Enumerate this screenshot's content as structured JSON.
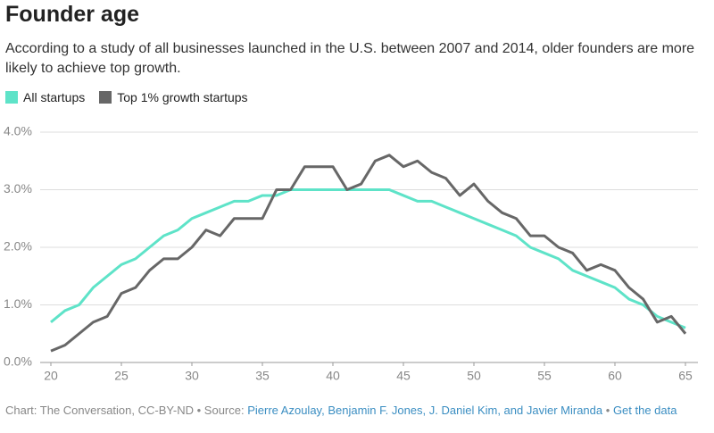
{
  "chart_data": {
    "type": "line",
    "title": "Founder age",
    "subtitle": "According to a study of all businesses launched in the U.S. between 2007 and 2014, older founders are more likely to achieve top growth.",
    "x": [
      20,
      21,
      22,
      23,
      24,
      25,
      26,
      27,
      28,
      29,
      30,
      31,
      32,
      33,
      34,
      35,
      36,
      37,
      38,
      39,
      40,
      41,
      42,
      43,
      44,
      45,
      46,
      47,
      48,
      49,
      50,
      51,
      52,
      53,
      54,
      55,
      56,
      57,
      58,
      59,
      60,
      61,
      62,
      63,
      64,
      65
    ],
    "series": [
      {
        "name": "All startups",
        "color": "#5ee3c8",
        "values": [
          0.7,
          0.9,
          1.0,
          1.3,
          1.5,
          1.7,
          1.8,
          2.0,
          2.2,
          2.3,
          2.5,
          2.6,
          2.7,
          2.8,
          2.8,
          2.9,
          2.9,
          3.0,
          3.0,
          3.0,
          3.0,
          3.0,
          3.0,
          3.0,
          3.0,
          2.9,
          2.8,
          2.8,
          2.7,
          2.6,
          2.5,
          2.4,
          2.3,
          2.2,
          2.0,
          1.9,
          1.8,
          1.6,
          1.5,
          1.4,
          1.3,
          1.1,
          1.0,
          0.8,
          0.7,
          0.6
        ]
      },
      {
        "name": "Top 1% growth startups",
        "color": "#676767",
        "values": [
          0.2,
          0.3,
          0.5,
          0.7,
          0.8,
          1.2,
          1.3,
          1.6,
          1.8,
          1.8,
          2.0,
          2.3,
          2.2,
          2.5,
          2.5,
          2.5,
          3.0,
          3.0,
          3.4,
          3.4,
          3.4,
          3.0,
          3.1,
          3.5,
          3.6,
          3.4,
          3.5,
          3.3,
          3.2,
          2.9,
          3.1,
          2.8,
          2.6,
          2.5,
          2.2,
          2.2,
          2.0,
          1.9,
          1.6,
          1.7,
          1.6,
          1.3,
          1.1,
          0.7,
          0.8,
          0.5
        ]
      }
    ],
    "xlim": [
      20,
      65
    ],
    "xticks": [
      20,
      25,
      30,
      35,
      40,
      45,
      50,
      55,
      60,
      65
    ],
    "ylim": [
      0,
      4
    ],
    "yticks": [
      {
        "value": 0,
        "label": "0.0%"
      },
      {
        "value": 1,
        "label": "1.0%"
      },
      {
        "value": 2,
        "label": "2.0%"
      },
      {
        "value": 3,
        "label": "3.0%"
      },
      {
        "value": 4,
        "label": "4.0%"
      }
    ],
    "grid": true,
    "legend": "top-left",
    "footer": {
      "credit": "Chart: The Conversation, CC-BY-ND",
      "separator": "•",
      "source_label": "Source:",
      "source": "Pierre Azoulay, Benjamin F. Jones, J. Daniel Kim, and Javier Miranda",
      "data_link": "Get the data"
    }
  }
}
